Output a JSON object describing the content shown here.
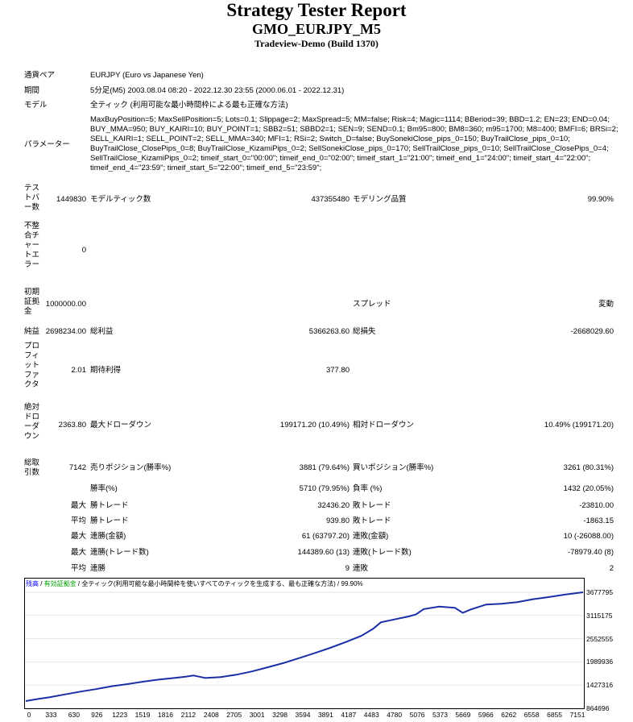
{
  "report": {
    "title": "Strategy Tester Report",
    "symbol_title": "GMO_EURJPY_M5",
    "server": "Tradeview-Demo (Build 1370)"
  },
  "info": {
    "symbol_label": "通貨ペア",
    "symbol_value": "EURJPY (Euro vs Japanese Yen)",
    "period_label": "期間",
    "period_value": "5分足(M5) 2003.08.04 08:20 - 2022.12.30 23:55 (2000.06.01 - 2022.12.31)",
    "model_label": "モデル",
    "model_value": "全ティック (利用可能な最小時間枠による最も正確な方法)",
    "params_label": "パラメーター",
    "params_value": "MaxBuyPosition=5; MaxSellPosition=5; Lots=0.1; Slippage=2; MaxSpread=5; MM=false; Risk=4; Magic=1114; BBeriod=39; BBD=1.2; EN=23; END=0.04; BUY_MMA=950; BUY_KAIRI=10; BUY_POINT=1; SBB2=51; SBBD2=1; SEN=9; SEND=0.1; Bm95=800; BM8=360; m95=1700; M8=400; BMFI=6; BRSi=2; SELL_KAIRI=1; SELL_POINT=2; SELL_MMA=340; MFI=1; RSi=2; Switch_D=false; BuySonekiClose_pips_0=150; BuyTrailClose_pips_0=10; BuyTrailClose_ClosePips_0=8; BuyTrailClose_KizamiPips_0=2; SellSonekiClose_pips_0=170; SellTrailClose_pips_0=10; SellTrailClose_ClosePips_0=4; SellTrailClose_KizamiPips_0=2; timeif_start_0=\"00:00\"; timeif_end_0=\"02:00\"; timeif_start_1=\"21:00\"; timeif_end_1=\"24:00\"; timeif_start_4=\"22:00\"; timeif_end_4=\"23:59\"; timeif_start_5=\"22:00\"; timeif_end_5=\"23:59\";"
  },
  "stats": {
    "bars_label": "テストバー数",
    "bars_value": "1449830",
    "ticks_label": "モデルティック数",
    "ticks_value": "437355480",
    "quality_label": "モデリング品質",
    "quality_value": "99.90%",
    "errors_label": "不整合チャートエラー",
    "errors_value": "0",
    "deposit_label": "初期証拠金",
    "deposit_value": "1000000.00",
    "spread_label": "スプレッド",
    "spread_value": "変動",
    "net_label": "純益",
    "net_value": "2698234.00",
    "gross_profit_label": "総利益",
    "gross_profit_value": "5366263.60",
    "gross_loss_label": "総損失",
    "gross_loss_value": "-2668029.60",
    "pf_label": "プロフィットファクタ",
    "pf_value": "2.01",
    "expected_label": "期待利得",
    "expected_value": "377.80",
    "abs_dd_label": "絶対ドローダウン",
    "abs_dd_value": "2363.80",
    "max_dd_label": "最大ドローダウン",
    "max_dd_value": "199171.20 (10.49%)",
    "rel_dd_label": "相対ドローダウン",
    "rel_dd_value": "10.49% (199171.20)",
    "trades_label": "総取引数",
    "trades_value": "7142",
    "short_label": "売りポジション(勝率%)",
    "short_value": "3881 (79.64%)",
    "long_label": "買いポジション(勝率%)",
    "long_value": "3261 (80.31%)",
    "winrate_label": "勝率(%)",
    "winrate_value": "5710 (79.95%)",
    "lossrate_label": "負率 (%)",
    "lossrate_value": "1432 (20.05%)",
    "max_label": "最大",
    "largest_win_label": "勝トレード",
    "largest_win_value": "32436.20",
    "largest_loss_label": "敗トレード",
    "largest_loss_value": "-23810.00",
    "avg_label": "平均",
    "avg_win_label": "勝トレード",
    "avg_win_value": "939.80",
    "avg_loss_label": "敗トレード",
    "avg_loss_value": "-1863.15",
    "max_consec_wins_label": "連勝(金額)",
    "max_consec_wins_value": "61 (63797.20)",
    "max_consec_losses_label": "連敗(金額)",
    "max_consec_losses_value": "10 (-26088.00)",
    "max_consec_profit_label": "連勝(トレード数)",
    "max_consec_profit_value": "144389.60 (13)",
    "max_consec_loss_label": "連敗(トレード数)",
    "max_consec_loss_value": "-78979.40 (8)",
    "avg_consec_wins_label": "連勝",
    "avg_consec_wins_value": "9",
    "avg_consec_losses_label": "連敗",
    "avg_consec_losses_value": "2"
  },
  "chart_legend": {
    "balance": "残高",
    "sep1": " / ",
    "equity": "有効証拠金",
    "sep2": " / ",
    "model": "全ティック(利用可能な最小時間枠を使いすべてのティックを生成する、最も正確な方法)",
    "sep3": " / ",
    "quality": "99.90%"
  },
  "colors": {
    "balance_line": "#1a2fa6",
    "equity_legend": "#00a000",
    "balance_legend": "#0000ff"
  },
  "chart_data": {
    "type": "line",
    "x_ticks": [
      "0",
      "333",
      "630",
      "926",
      "1223",
      "1519",
      "1816",
      "2112",
      "2408",
      "2705",
      "3001",
      "3298",
      "3594",
      "3891",
      "4187",
      "4483",
      "4780",
      "5076",
      "5373",
      "5669",
      "5966",
      "6262",
      "6558",
      "6855",
      "7151"
    ],
    "y_ticks": [
      "3677795",
      "3115175",
      "2552555",
      "1989936",
      "1427316",
      "864696"
    ],
    "ylim": [
      864696,
      3677795
    ],
    "xlim": [
      0,
      7142
    ],
    "series": [
      {
        "x": [
          0,
          150,
          300,
          500,
          700,
          900,
          1100,
          1300,
          1500,
          1700,
          1900,
          2050,
          2150,
          2200,
          2300,
          2500,
          2700,
          2900,
          3100,
          3300,
          3500,
          3700,
          3900,
          4100,
          4300,
          4450,
          4550,
          4700,
          4900,
          5000,
          5100,
          5300,
          5500,
          5600,
          5700,
          5900,
          6100,
          6300,
          6500,
          6700,
          6900,
          7142
        ],
        "y": [
          1040000,
          1090000,
          1130000,
          1200000,
          1270000,
          1330000,
          1400000,
          1450000,
          1510000,
          1560000,
          1600000,
          1630000,
          1660000,
          1640000,
          1600000,
          1620000,
          1680000,
          1760000,
          1860000,
          1960000,
          2080000,
          2200000,
          2330000,
          2470000,
          2620000,
          2790000,
          2950000,
          3010000,
          3090000,
          3140000,
          3270000,
          3330000,
          3300000,
          3180000,
          3260000,
          3380000,
          3400000,
          3440000,
          3510000,
          3560000,
          3620000,
          3677795
        ]
      }
    ]
  }
}
